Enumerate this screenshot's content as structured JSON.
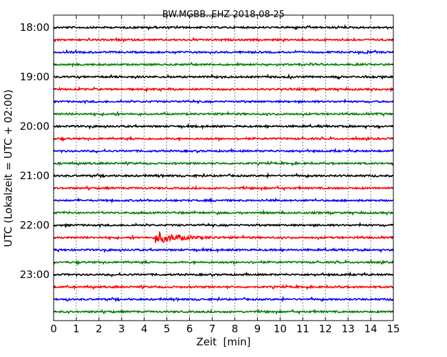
{
  "chart_data": {
    "type": "line",
    "title": "BW.MGBB..EHZ 2018-08-25",
    "xlabel": "Zeit  [min]",
    "ylabel": "UTC (Lokalzeit = UTC + 02:00)",
    "xlim": [
      0,
      15
    ],
    "x_ticks": [
      "0",
      "1",
      "2",
      "3",
      "4",
      "5",
      "6",
      "7",
      "8",
      "9",
      "10",
      "11",
      "12",
      "13",
      "14",
      "15"
    ],
    "y_tick_labels": [
      "18:00",
      "19:00",
      "20:00",
      "21:00",
      "22:00",
      "23:00"
    ],
    "grid": "vertical dotted",
    "trace_colors": [
      "#000000",
      "#ff0000",
      "#0000ff",
      "#008000"
    ],
    "traces": [
      {
        "start": "18:00",
        "color": "#000000"
      },
      {
        "start": "18:15",
        "color": "#ff0000"
      },
      {
        "start": "18:30",
        "color": "#0000ff"
      },
      {
        "start": "18:45",
        "color": "#008000"
      },
      {
        "start": "19:00",
        "color": "#000000"
      },
      {
        "start": "19:15",
        "color": "#ff0000"
      },
      {
        "start": "19:30",
        "color": "#0000ff"
      },
      {
        "start": "19:45",
        "color": "#008000"
      },
      {
        "start": "20:00",
        "color": "#000000"
      },
      {
        "start": "20:15",
        "color": "#ff0000"
      },
      {
        "start": "20:30",
        "color": "#0000ff"
      },
      {
        "start": "20:45",
        "color": "#008000"
      },
      {
        "start": "21:00",
        "color": "#000000"
      },
      {
        "start": "21:15",
        "color": "#ff0000"
      },
      {
        "start": "21:30",
        "color": "#0000ff"
      },
      {
        "start": "21:45",
        "color": "#008000"
      },
      {
        "start": "22:00",
        "color": "#000000"
      },
      {
        "start": "22:15",
        "color": "#ff0000",
        "event": {
          "onset_min": 4.5,
          "duration_min": 3.4,
          "peak_relative": 1.0
        }
      },
      {
        "start": "22:30",
        "color": "#0000ff"
      },
      {
        "start": "22:45",
        "color": "#008000"
      },
      {
        "start": "23:00",
        "color": "#000000"
      },
      {
        "start": "23:15",
        "color": "#ff0000"
      },
      {
        "start": "23:30",
        "color": "#0000ff"
      },
      {
        "start": "23:45",
        "color": "#008000"
      }
    ]
  }
}
